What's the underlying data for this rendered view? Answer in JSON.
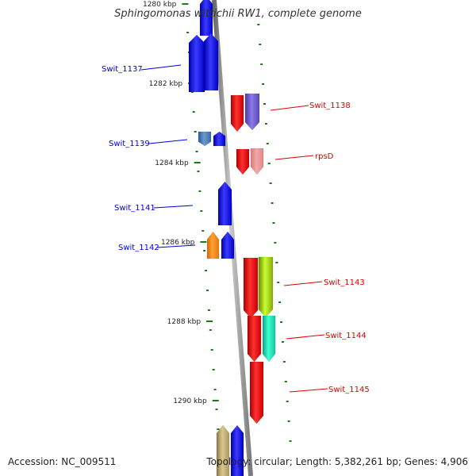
{
  "title": "Sphingomonas wittichii RW1, complete genome",
  "footer": {
    "accession": "Accession: NC_009511",
    "topology": "Topology: circular; Length: 5,382,261 bp; Genes: 4,906"
  },
  "scale_labels": [
    "1280 kbp",
    "1282 kbp",
    "1284 kbp",
    "1286 kbp",
    "1288 kbp",
    "1290 kbp"
  ],
  "colors": {
    "backbone": "#8a8a8a",
    "blue_strand": "#0000dd",
    "red_strand": "#dd0000",
    "tick": "#1a7a1a"
  },
  "genes": [
    {
      "id": "Swit_1137",
      "label": "Swit_1137",
      "strand": "left"
    },
    {
      "id": "Swit_1138",
      "label": "Swit_1138",
      "strand": "right"
    },
    {
      "id": "Swit_1139",
      "label": "Swit_1139",
      "strand": "left"
    },
    {
      "id": "rpsD",
      "label": "rpsD",
      "strand": "right"
    },
    {
      "id": "Swit_1141",
      "label": "Swit_1141",
      "strand": "left"
    },
    {
      "id": "Swit_1142",
      "label": "Swit_1142",
      "strand": "left"
    },
    {
      "id": "Swit_1143",
      "label": "Swit_1143",
      "strand": "right"
    },
    {
      "id": "Swit_1144",
      "label": "Swit_1144",
      "strand": "right"
    },
    {
      "id": "Swit_1145",
      "label": "Swit_1145",
      "strand": "right"
    }
  ]
}
